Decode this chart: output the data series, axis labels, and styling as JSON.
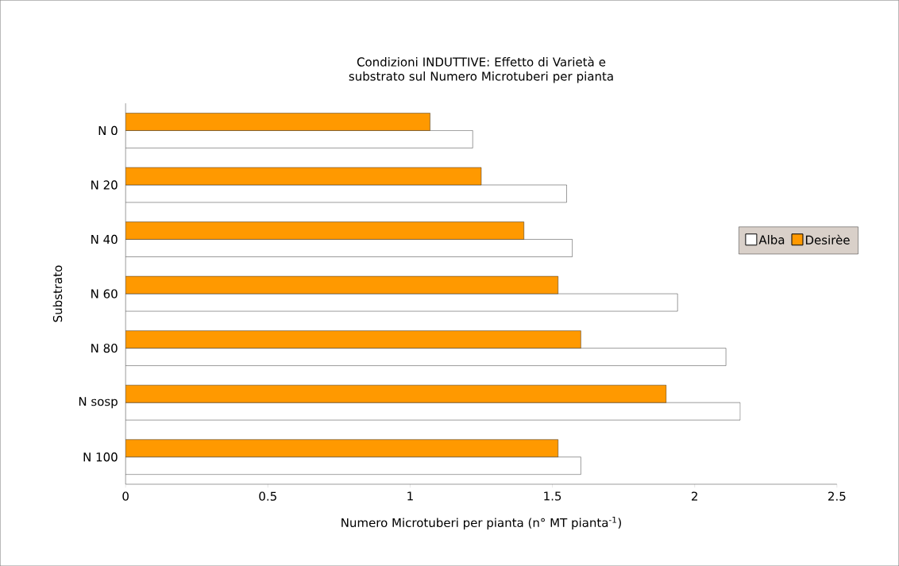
{
  "chart_data": {
    "type": "bar",
    "orientation": "horizontal",
    "title": "Condizioni INDUTTIVE: Effetto di Varietà e substrato sul Numero Microtuberi per pianta",
    "xlabel": "Numero Microtuberi per pianta (n° MT pianta$^{-1}$)",
    "ylabel": "Substrato",
    "categories": [
      "N 0",
      "N 20",
      "N 40",
      "N 60",
      "N 80",
      "N sosp",
      "N 100"
    ],
    "series": [
      {
        "name": "Alba",
        "color": "#ffffff",
        "values": [
          1.22,
          1.55,
          1.57,
          1.94,
          2.11,
          2.16,
          1.6
        ]
      },
      {
        "name": "Desirèe",
        "color": "#ff9900",
        "values": [
          1.07,
          1.25,
          1.4,
          1.52,
          1.6,
          1.9,
          1.52
        ]
      }
    ],
    "xlim": [
      0,
      2.5
    ],
    "xticks": [
      0,
      0.5,
      1,
      1.5,
      2,
      2.5
    ],
    "legend": "right"
  }
}
